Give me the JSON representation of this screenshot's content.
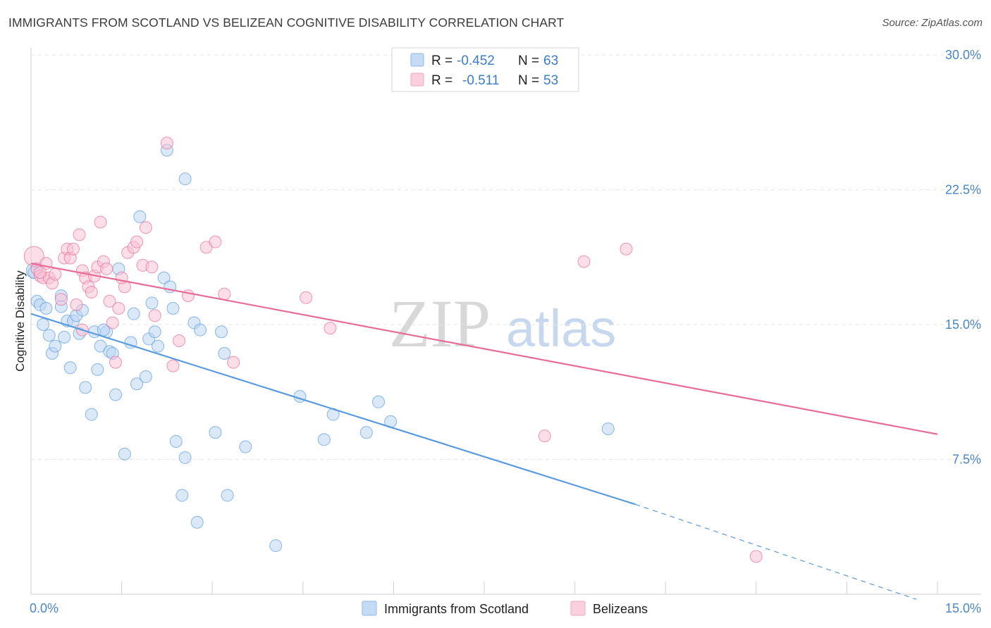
{
  "header": {
    "title": "IMMIGRANTS FROM SCOTLAND VS BELIZEAN COGNITIVE DISABILITY CORRELATION CHART",
    "source": "Source: ZipAtlas.com"
  },
  "watermark": {
    "zip": "ZIP",
    "atlas": "atlas"
  },
  "legend": {
    "rows": [
      {
        "r_label": "R =",
        "r_value": "-0.452",
        "n_label": "N =",
        "n_value": "63",
        "color": "#8fb8ea"
      },
      {
        "r_label": "R =",
        "r_value": "-0.511",
        "n_label": "N =",
        "n_value": "53",
        "color": "#f3a6c0"
      }
    ]
  },
  "bottom_legend": [
    {
      "label": "Immigrants from Scotland",
      "color": "#8fb8ea"
    },
    {
      "label": "Belizeans",
      "color": "#f3a6c0"
    }
  ],
  "chart_data": {
    "type": "scatter",
    "title": "IMMIGRANTS FROM SCOTLAND VS BELIZEAN COGNITIVE DISABILITY CORRELATION CHART",
    "xlabel": "",
    "ylabel": "Cognitive Disability",
    "xlim": [
      0,
      15
    ],
    "ylim": [
      0,
      30
    ],
    "y_ticks": [
      {
        "value": 7.5,
        "label": "7.5%"
      },
      {
        "value": 15,
        "label": "15.0%"
      },
      {
        "value": 22.5,
        "label": "22.5%"
      },
      {
        "value": 30,
        "label": "30.0%"
      }
    ],
    "x_ticks": [
      {
        "value": 0,
        "label": "0.0%"
      },
      {
        "value": 15,
        "label": "15.0%"
      }
    ],
    "grid": true,
    "legend_position": "top-center",
    "series": [
      {
        "name": "Immigrants from Scotland",
        "color": "#5b9be0",
        "fill": "#bcd5f3",
        "trend": {
          "x0": 0,
          "y0": 15.6,
          "x1": 10.0,
          "y1": 5.0,
          "dash_to_x": 15,
          "dash_to_y": -0.4
        },
        "points": [
          [
            0.05,
            18.0
          ],
          [
            0.1,
            16.3
          ],
          [
            0.15,
            16.1
          ],
          [
            0.2,
            15.0
          ],
          [
            0.25,
            15.9
          ],
          [
            0.3,
            14.4
          ],
          [
            0.35,
            13.4
          ],
          [
            0.4,
            13.8
          ],
          [
            0.5,
            16.6
          ],
          [
            0.5,
            16.0
          ],
          [
            0.55,
            14.3
          ],
          [
            0.6,
            15.2
          ],
          [
            0.65,
            12.6
          ],
          [
            0.7,
            15.2
          ],
          [
            0.75,
            15.5
          ],
          [
            0.8,
            14.5
          ],
          [
            0.85,
            15.8
          ],
          [
            0.9,
            11.5
          ],
          [
            1.0,
            10.0
          ],
          [
            1.05,
            14.6
          ],
          [
            1.1,
            12.5
          ],
          [
            1.15,
            13.8
          ],
          [
            1.25,
            14.6
          ],
          [
            1.3,
            13.5
          ],
          [
            1.35,
            13.4
          ],
          [
            1.4,
            11.1
          ],
          [
            1.45,
            18.1
          ],
          [
            1.55,
            7.8
          ],
          [
            1.65,
            14.0
          ],
          [
            1.7,
            15.6
          ],
          [
            1.75,
            11.7
          ],
          [
            1.8,
            21.0
          ],
          [
            1.9,
            12.1
          ],
          [
            1.95,
            14.2
          ],
          [
            2.0,
            16.2
          ],
          [
            2.05,
            14.6
          ],
          [
            2.1,
            13.8
          ],
          [
            2.2,
            17.6
          ],
          [
            2.25,
            24.7
          ],
          [
            2.3,
            17.1
          ],
          [
            2.35,
            15.9
          ],
          [
            2.4,
            8.5
          ],
          [
            2.5,
            5.5
          ],
          [
            2.55,
            7.6
          ],
          [
            2.55,
            23.1
          ],
          [
            2.7,
            15.1
          ],
          [
            2.75,
            4.0
          ],
          [
            2.8,
            14.7
          ],
          [
            3.05,
            9.0
          ],
          [
            3.15,
            14.6
          ],
          [
            3.2,
            13.4
          ],
          [
            3.25,
            5.5
          ],
          [
            3.55,
            8.2
          ],
          [
            4.05,
            2.7
          ],
          [
            4.45,
            11.0
          ],
          [
            4.85,
            8.6
          ],
          [
            5.0,
            10.0
          ],
          [
            5.55,
            9.0
          ],
          [
            5.75,
            10.7
          ],
          [
            5.95,
            9.6
          ],
          [
            9.55,
            9.2
          ],
          [
            0.05,
            17.9
          ],
          [
            1.2,
            14.7
          ]
        ]
      },
      {
        "name": "Belizeans",
        "color": "#e86c98",
        "fill": "#f7c3d5",
        "trend": {
          "x0": 0,
          "y0": 18.4,
          "x1": 15,
          "y1": 8.9
        },
        "points": [
          [
            0.05,
            18.8
          ],
          [
            0.1,
            18.1
          ],
          [
            0.15,
            17.7
          ],
          [
            0.2,
            17.6
          ],
          [
            0.25,
            18.4
          ],
          [
            0.3,
            17.6
          ],
          [
            0.35,
            17.3
          ],
          [
            0.4,
            17.8
          ],
          [
            0.5,
            16.4
          ],
          [
            0.55,
            18.7
          ],
          [
            0.6,
            19.2
          ],
          [
            0.65,
            18.7
          ],
          [
            0.7,
            19.2
          ],
          [
            0.75,
            16.1
          ],
          [
            0.8,
            20.0
          ],
          [
            0.85,
            18.0
          ],
          [
            0.9,
            17.6
          ],
          [
            0.95,
            17.1
          ],
          [
            1.0,
            16.8
          ],
          [
            1.05,
            17.7
          ],
          [
            1.1,
            18.2
          ],
          [
            1.15,
            20.7
          ],
          [
            1.2,
            18.5
          ],
          [
            1.25,
            18.1
          ],
          [
            1.3,
            16.3
          ],
          [
            1.35,
            15.1
          ],
          [
            1.4,
            12.9
          ],
          [
            1.45,
            15.9
          ],
          [
            1.55,
            17.1
          ],
          [
            1.6,
            19.0
          ],
          [
            1.7,
            19.3
          ],
          [
            1.75,
            19.6
          ],
          [
            1.85,
            18.3
          ],
          [
            1.9,
            20.4
          ],
          [
            2.0,
            18.2
          ],
          [
            2.05,
            15.5
          ],
          [
            2.25,
            25.1
          ],
          [
            2.35,
            12.7
          ],
          [
            2.45,
            14.1
          ],
          [
            2.6,
            16.6
          ],
          [
            2.9,
            19.3
          ],
          [
            3.05,
            19.6
          ],
          [
            3.2,
            16.7
          ],
          [
            3.35,
            12.9
          ],
          [
            4.55,
            16.5
          ],
          [
            4.95,
            14.8
          ],
          [
            8.5,
            8.8
          ],
          [
            9.15,
            18.5
          ],
          [
            9.85,
            19.2
          ],
          [
            12.0,
            2.1
          ],
          [
            0.85,
            14.7
          ],
          [
            1.5,
            17.6
          ],
          [
            0.15,
            17.9
          ]
        ]
      }
    ]
  }
}
